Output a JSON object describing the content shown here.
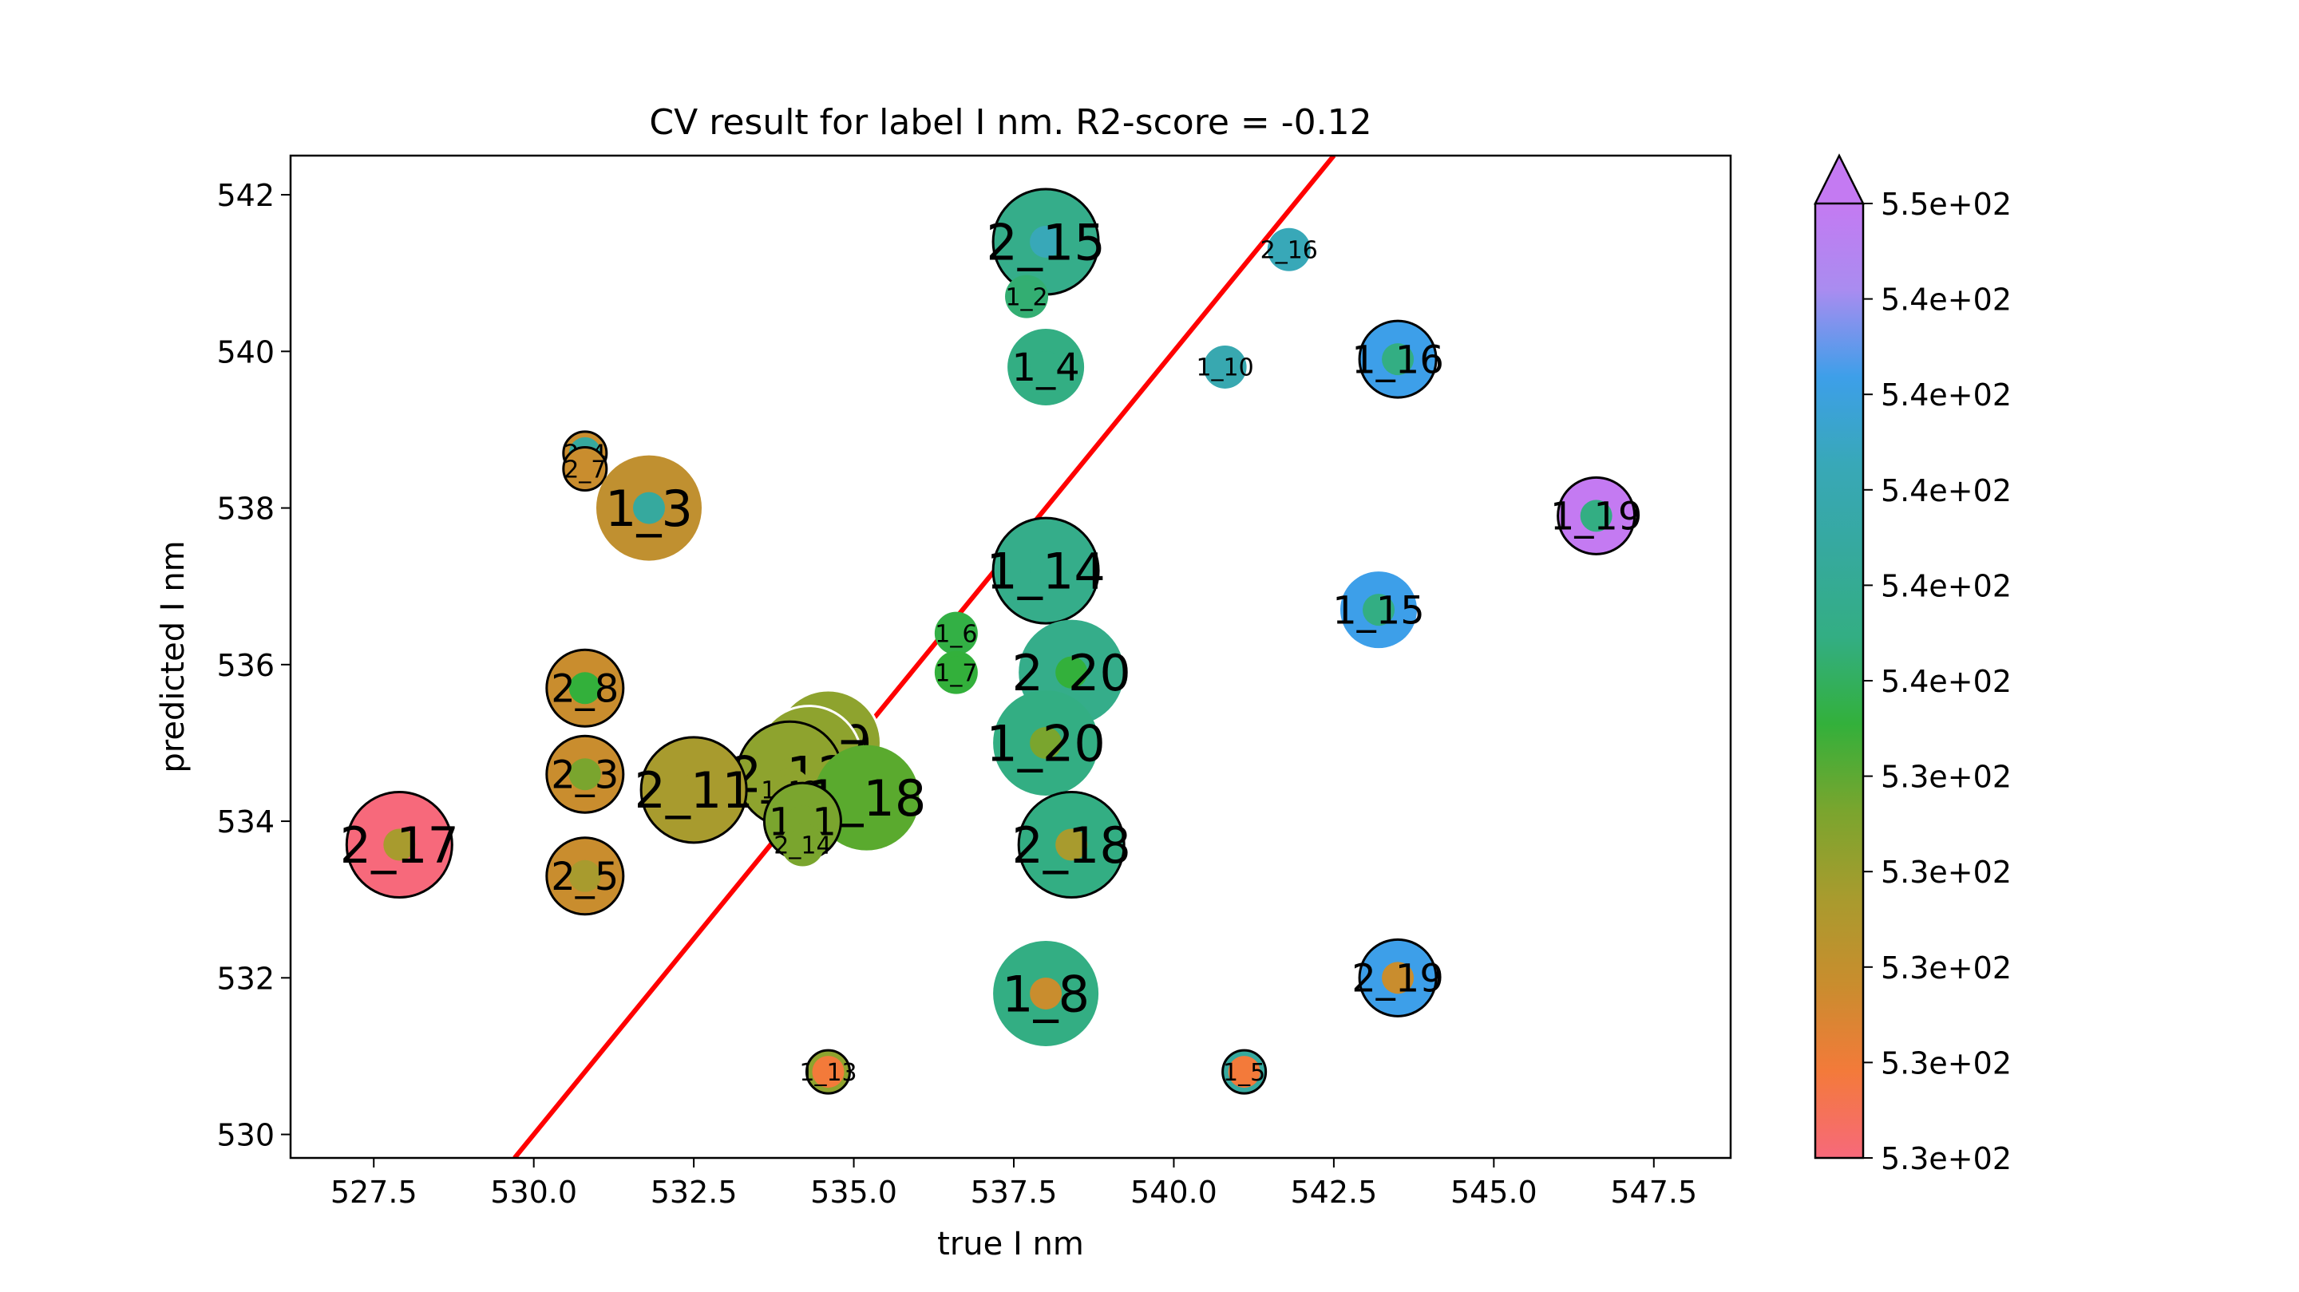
{
  "chart_data": {
    "type": "scatter",
    "title": "CV result for label I nm. R2-score = -0.12",
    "xlabel": "true I nm",
    "ylabel": "predicted I nm",
    "xlim": [
      526.2,
      548.7
    ],
    "ylim": [
      529.7,
      542.5
    ],
    "xticks": [
      527.5,
      530.0,
      532.5,
      535.0,
      537.5,
      540.0,
      542.5,
      545.0,
      547.5
    ],
    "xtick_labels": [
      "527.5",
      "530.0",
      "532.5",
      "535.0",
      "537.5",
      "540.0",
      "542.5",
      "545.0",
      "547.5"
    ],
    "yticks": [
      530,
      532,
      534,
      536,
      538,
      540,
      542
    ],
    "ytick_labels": [
      "530",
      "532",
      "534",
      "536",
      "538",
      "540",
      "542"
    ],
    "grid": false,
    "reference_line": {
      "color": "#ff0000",
      "from": [
        529.7,
        529.7
      ],
      "to": [
        542.5,
        542.5
      ]
    },
    "colorbar": {
      "tick_labels": [
        "5.3e+02",
        "5.3e+02",
        "5.3e+02",
        "5.3e+02",
        "5.3e+02",
        "5.4e+02",
        "5.4e+02",
        "5.4e+02",
        "5.4e+02",
        "5.4e+02",
        "5.5e+02"
      ],
      "colors": [
        "#f7697b",
        "#f37a3a",
        "#c98d2e",
        "#a89b2e",
        "#7aa52e",
        "#33b03b",
        "#33ae83",
        "#36a99e",
        "#38a8b8",
        "#3d9fe9",
        "#a98cf0",
        "#c47af2"
      ],
      "extend": "max"
    },
    "points": [
      {
        "label": "2_15",
        "x": 538.0,
        "y": 541.4,
        "size": "large",
        "color": "#35ad8a",
        "inner_color": "#38a8b8",
        "edge": "black"
      },
      {
        "label": "2_16",
        "x": 541.8,
        "y": 541.3,
        "size": "small",
        "color": "#38a8b8",
        "inner_color": "#38a8b8",
        "edge": "none"
      },
      {
        "label": "1_2",
        "x": 537.7,
        "y": 540.7,
        "size": "small",
        "color": "#33ae72",
        "inner_color": "#33ae72",
        "edge": "none"
      },
      {
        "label": "1_4",
        "x": 538.0,
        "y": 539.8,
        "size": "medium",
        "color": "#33ae83",
        "inner_color": "#33ae83",
        "edge": "none"
      },
      {
        "label": "1_10",
        "x": 540.8,
        "y": 539.8,
        "size": "small",
        "color": "#38a8b0",
        "inner_color": "#38a8b0",
        "edge": "none"
      },
      {
        "label": "1_16",
        "x": 543.5,
        "y": 539.9,
        "size": "medium",
        "color": "#3d9fe9",
        "inner_color": "#33ae83",
        "edge": "black"
      },
      {
        "label": "2_4",
        "x": 530.8,
        "y": 538.7,
        "size": "small",
        "color": "#c98d2e",
        "inner_color": "#36a99e",
        "edge": "black"
      },
      {
        "label": "2_7",
        "x": 530.8,
        "y": 538.5,
        "size": "small",
        "color": "#c98d2e",
        "inner_color": "#c98d2e",
        "edge": "black"
      },
      {
        "label": "1_3",
        "x": 531.8,
        "y": 538.0,
        "size": "large",
        "color": "#c09030",
        "inner_color": "#36a99e",
        "edge": "none"
      },
      {
        "label": "1_19",
        "x": 546.6,
        "y": 537.9,
        "size": "medium",
        "color": "#c47af2",
        "inner_color": "#33ae83",
        "edge": "black"
      },
      {
        "label": "1_14",
        "x": 538.0,
        "y": 537.2,
        "size": "large",
        "color": "#35ad8a",
        "inner_color": "#35ad8a",
        "edge": "black"
      },
      {
        "label": "1_15",
        "x": 543.2,
        "y": 536.7,
        "size": "medium",
        "color": "#3d9fe9",
        "inner_color": "#33ae83",
        "edge": "none"
      },
      {
        "label": "1_6",
        "x": 536.6,
        "y": 536.4,
        "size": "small",
        "color": "#33b045",
        "inner_color": "#33b045",
        "edge": "none"
      },
      {
        "label": "2_1",
        "x": 530.8,
        "y": 535.9,
        "size": "small",
        "color": "#c98d2e",
        "inner_color": "#33b03b",
        "edge": "none"
      },
      {
        "label": "1_7",
        "x": 536.6,
        "y": 535.9,
        "size": "small",
        "color": "#33b03b",
        "inner_color": "#33b03b",
        "edge": "none"
      },
      {
        "label": "2_20",
        "x": 538.4,
        "y": 535.9,
        "size": "large",
        "color": "#35ad8a",
        "inner_color": "#33b03b",
        "edge": "none"
      },
      {
        "label": "2_8",
        "x": 530.8,
        "y": 535.7,
        "size": "medium",
        "color": "#c98d2e",
        "inner_color": "#33b03b",
        "edge": "black"
      },
      {
        "label": "1_20",
        "x": 538.0,
        "y": 535.0,
        "size": "large",
        "color": "#33ae83",
        "inner_color": "#7aa52e",
        "edge": "none"
      },
      {
        "label": "1_9",
        "x": 534.6,
        "y": 535.0,
        "size": "large",
        "color": "#8ea32e",
        "inner_color": "#8ea32e",
        "edge": "white"
      },
      {
        "label": "1_17",
        "x": 534.3,
        "y": 534.8,
        "size": "large",
        "color": "#8ea32e",
        "inner_color": "#8ea32e",
        "edge": "white"
      },
      {
        "label": "2_12",
        "x": 534.0,
        "y": 534.6,
        "size": "large",
        "color": "#8ea32e",
        "inner_color": "#8ea32e",
        "edge": "black"
      },
      {
        "label": "2_3",
        "x": 530.8,
        "y": 534.6,
        "size": "medium",
        "color": "#c98d2e",
        "inner_color": "#7aa52e",
        "edge": "black"
      },
      {
        "label": "2_11",
        "x": 532.5,
        "y": 534.4,
        "size": "large",
        "color": "#a89b2e",
        "inner_color": "#a89b2e",
        "edge": "black"
      },
      {
        "label": "1_12",
        "x": 534.0,
        "y": 534.4,
        "size": "small",
        "color": "#8ea32e",
        "inner_color": "#8ea32e",
        "edge": "none"
      },
      {
        "label": "1_18",
        "x": 535.2,
        "y": 534.3,
        "size": "large",
        "color": "#5aaa2e",
        "inner_color": "#5aaa2e",
        "edge": "none"
      },
      {
        "label": "1_1",
        "x": 534.2,
        "y": 534.0,
        "size": "medium",
        "color": "#7aa52e",
        "inner_color": "#7aa52e",
        "edge": "black"
      },
      {
        "label": "2_14",
        "x": 534.2,
        "y": 533.7,
        "size": "small",
        "color": "#7aa52e",
        "inner_color": "#7aa52e",
        "edge": "none"
      },
      {
        "label": "2_18",
        "x": 538.4,
        "y": 533.7,
        "size": "large",
        "color": "#33ae83",
        "inner_color": "#a89b2e",
        "edge": "black"
      },
      {
        "label": "2_17",
        "x": 527.9,
        "y": 533.7,
        "size": "large",
        "color": "#f7697b",
        "inner_color": "#a89b2e",
        "edge": "black"
      },
      {
        "label": "2_5",
        "x": 530.8,
        "y": 533.3,
        "size": "medium",
        "color": "#c98d2e",
        "inner_color": "#a89b2e",
        "edge": "black"
      },
      {
        "label": "2_19",
        "x": 543.5,
        "y": 532.0,
        "size": "medium",
        "color": "#3d9fe9",
        "inner_color": "#c98d2e",
        "edge": "black"
      },
      {
        "label": "1_8",
        "x": 538.0,
        "y": 531.8,
        "size": "large",
        "color": "#33ae83",
        "inner_color": "#c98d2e",
        "edge": "none"
      },
      {
        "label": "1_13",
        "x": 534.6,
        "y": 530.8,
        "size": "small",
        "color": "#8ea32e",
        "inner_color": "#f37a3a",
        "edge": "black"
      },
      {
        "label": "1_5",
        "x": 541.1,
        "y": 530.8,
        "size": "small",
        "color": "#36a99e",
        "inner_color": "#f37a3a",
        "edge": "black"
      }
    ]
  }
}
